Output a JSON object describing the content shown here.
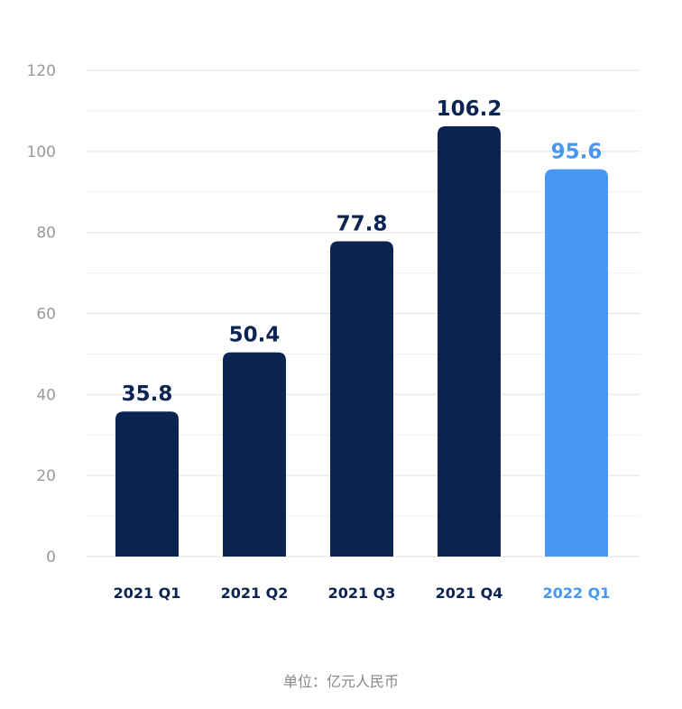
{
  "chart_data": {
    "type": "bar",
    "categories": [
      "2021 Q1",
      "2021 Q2",
      "2021 Q3",
      "2021 Q4",
      "2022 Q1"
    ],
    "values": [
      35.8,
      50.4,
      77.8,
      106.2,
      95.6
    ],
    "value_labels": [
      "35.8",
      "50.4",
      "77.8",
      "106.2",
      "95.6"
    ],
    "highlight_index": 4,
    "ylim": [
      0,
      120
    ],
    "yticks": [
      0,
      20,
      40,
      60,
      80,
      100,
      120
    ],
    "grid": true,
    "unit_note": "单位：亿元人民币",
    "colors": {
      "bar": "#0b2451",
      "highlight": "#4a97f3",
      "label": "#0b2451",
      "highlight_label": "#4a97f3",
      "tick": "#999999",
      "grid_major": "#e6e6e6",
      "grid_minor": "#f0f0f0"
    }
  }
}
